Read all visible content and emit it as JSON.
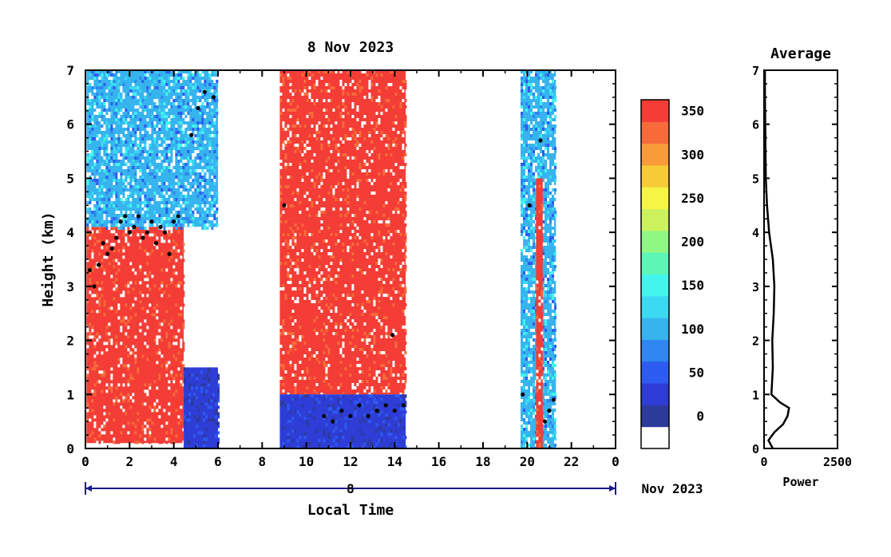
{
  "chart_data": [
    {
      "type": "heatmap",
      "title": "8 Nov 2023",
      "xlabel": "Local Time",
      "ylabel": "Height (km)",
      "xlim": [
        0,
        24
      ],
      "ylim": [
        0,
        7
      ],
      "x_ticks": [
        "0",
        "2",
        "4",
        "6",
        "8",
        "10",
        "12",
        "14",
        "16",
        "18",
        "20",
        "22",
        "0"
      ],
      "y_ticks": [
        "0",
        "1",
        "2",
        "3",
        "4",
        "5",
        "6",
        "7"
      ],
      "date_axis": {
        "day_label": "8",
        "month_label": "Nov 2023"
      },
      "data_periods_hours": [
        [
          0,
          6
        ],
        [
          8.8,
          14.5
        ],
        [
          19.7,
          21.3
        ]
      ],
      "regions": [
        {
          "x": [
            0.05,
            4.45
          ],
          "y": [
            0.1,
            4.1
          ],
          "level": "high (350+)"
        },
        {
          "x": [
            0.05,
            6.0
          ],
          "y": [
            4.1,
            7.0
          ],
          "level": "low-moderate (100-200)"
        },
        {
          "x": [
            4.45,
            6.0
          ],
          "y": [
            0.0,
            1.5
          ],
          "level": "low (0-100)"
        },
        {
          "x": [
            8.8,
            14.5
          ],
          "y": [
            1.0,
            7.0
          ],
          "level": "high (350+)"
        },
        {
          "x": [
            8.8,
            14.5
          ],
          "y": [
            0.0,
            1.0
          ],
          "level": "low (0-100)"
        },
        {
          "x": [
            19.7,
            21.3
          ],
          "y": [
            0.0,
            7.0
          ],
          "level": "low-moderate (100-200)"
        },
        {
          "x": [
            20.4,
            20.7
          ],
          "y": [
            0.0,
            5.0
          ],
          "level": "high (350+)"
        }
      ],
      "cloud_base_points": [
        {
          "x": 0.2,
          "y": 3.3
        },
        {
          "x": 0.4,
          "y": 3.0
        },
        {
          "x": 0.6,
          "y": 3.4
        },
        {
          "x": 0.8,
          "y": 3.8
        },
        {
          "x": 1.0,
          "y": 3.6
        },
        {
          "x": 1.2,
          "y": 3.7
        },
        {
          "x": 1.4,
          "y": 3.9
        },
        {
          "x": 1.6,
          "y": 4.2
        },
        {
          "x": 1.8,
          "y": 4.3
        },
        {
          "x": 2.0,
          "y": 4.0
        },
        {
          "x": 2.2,
          "y": 4.1
        },
        {
          "x": 2.4,
          "y": 4.3
        },
        {
          "x": 2.6,
          "y": 3.9
        },
        {
          "x": 2.8,
          "y": 4.0
        },
        {
          "x": 3.0,
          "y": 4.2
        },
        {
          "x": 3.2,
          "y": 3.8
        },
        {
          "x": 3.4,
          "y": 4.1
        },
        {
          "x": 3.6,
          "y": 4.0
        },
        {
          "x": 3.8,
          "y": 3.6
        },
        {
          "x": 4.0,
          "y": 4.2
        },
        {
          "x": 4.2,
          "y": 4.3
        },
        {
          "x": 4.8,
          "y": 5.8
        },
        {
          "x": 5.1,
          "y": 6.3
        },
        {
          "x": 5.4,
          "y": 6.6
        },
        {
          "x": 5.8,
          "y": 6.5
        },
        {
          "x": 9.0,
          "y": 4.5
        },
        {
          "x": 10.8,
          "y": 0.6
        },
        {
          "x": 11.2,
          "y": 0.5
        },
        {
          "x": 11.6,
          "y": 0.7
        },
        {
          "x": 12.0,
          "y": 0.6
        },
        {
          "x": 12.4,
          "y": 0.8
        },
        {
          "x": 12.8,
          "y": 0.6
        },
        {
          "x": 13.2,
          "y": 0.7
        },
        {
          "x": 13.6,
          "y": 0.8
        },
        {
          "x": 14.0,
          "y": 0.7
        },
        {
          "x": 14.4,
          "y": 0.8
        },
        {
          "x": 13.9,
          "y": 2.1
        },
        {
          "x": 19.8,
          "y": 1.0
        },
        {
          "x": 20.1,
          "y": 4.5
        },
        {
          "x": 20.6,
          "y": 5.7
        },
        {
          "x": 20.8,
          "y": 0.5
        },
        {
          "x": 21.0,
          "y": 0.7
        },
        {
          "x": 21.2,
          "y": 0.9
        }
      ]
    },
    {
      "type": "line",
      "title": "Average",
      "xlabel": "Power",
      "ylabel": "",
      "xlim": [
        0,
        2500
      ],
      "ylim": [
        0,
        7
      ],
      "x_ticks": [
        "0",
        "2500"
      ],
      "y_ticks": [
        "0",
        "1",
        "2",
        "3",
        "4",
        "5",
        "6",
        "7"
      ],
      "series": [
        {
          "values": [
            {
              "x": 300,
              "y": 0.0
            },
            {
              "x": 150,
              "y": 0.15
            },
            {
              "x": 350,
              "y": 0.3
            },
            {
              "x": 650,
              "y": 0.45
            },
            {
              "x": 800,
              "y": 0.6
            },
            {
              "x": 850,
              "y": 0.75
            },
            {
              "x": 550,
              "y": 0.85
            },
            {
              "x": 250,
              "y": 1.0
            },
            {
              "x": 300,
              "y": 1.5
            },
            {
              "x": 280,
              "y": 2.0
            },
            {
              "x": 330,
              "y": 2.5
            },
            {
              "x": 350,
              "y": 3.0
            },
            {
              "x": 300,
              "y": 3.5
            },
            {
              "x": 170,
              "y": 4.0
            },
            {
              "x": 100,
              "y": 4.5
            },
            {
              "x": 60,
              "y": 5.0
            },
            {
              "x": 50,
              "y": 5.5
            },
            {
              "x": 40,
              "y": 6.0
            },
            {
              "x": 30,
              "y": 6.5
            },
            {
              "x": 30,
              "y": 7.0
            }
          ]
        }
      ]
    }
  ],
  "colorbar": {
    "ticks": [
      "0",
      "50",
      "100",
      "150",
      "200",
      "250",
      "300",
      "350"
    ],
    "colors": [
      "#ffffff",
      "#2d3a9c",
      "#2e3dd6",
      "#2d5bf2",
      "#2f86f0",
      "#37b4ee",
      "#3bd9f2",
      "#44f5ee",
      "#5cf7b5",
      "#8ff784",
      "#cbf25c",
      "#f6f445",
      "#f7ca38",
      "#f99b38",
      "#f76b3a",
      "#f33d36"
    ]
  }
}
